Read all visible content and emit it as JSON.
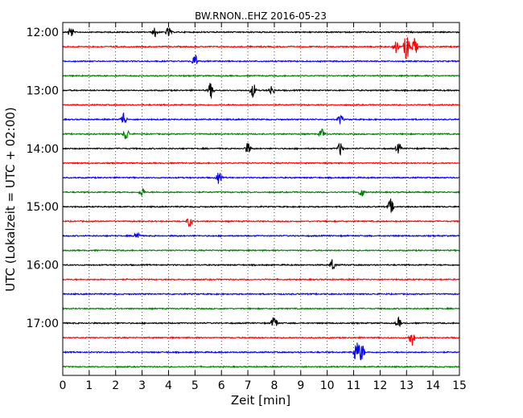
{
  "chart_data": {
    "type": "line",
    "title": "BW.RNON..EHZ 2016-05-23",
    "xlabel": "Zeit  [min]",
    "ylabel": "UTC (Lokalzeit = UTC + 02:00)",
    "xlim": [
      0,
      15
    ],
    "x_ticks": [
      "0",
      "1",
      "2",
      "3",
      "4",
      "5",
      "6",
      "7",
      "8",
      "9",
      "10",
      "11",
      "12",
      "13",
      "14",
      "15"
    ],
    "y_tick_labels": [
      "12:00",
      "13:00",
      "14:00",
      "15:00",
      "16:00",
      "17:00"
    ],
    "grid": "vertical dotted",
    "trace_colors": [
      "#000000",
      "#ff0000",
      "#0000ff",
      "#008000"
    ],
    "traces": [
      {
        "start": "12:00",
        "color": "#000000",
        "events": [
          {
            "t": 0.3,
            "amp": 0.35
          },
          {
            "t": 3.5,
            "amp": 0.3
          },
          {
            "t": 4.0,
            "amp": 0.3
          }
        ]
      },
      {
        "start": "12:15",
        "color": "#ff0000",
        "events": [
          {
            "t": 12.6,
            "amp": 0.4
          },
          {
            "t": 13.0,
            "amp": 0.9
          },
          {
            "t": 13.3,
            "amp": 0.6
          }
        ]
      },
      {
        "start": "12:30",
        "color": "#0000ff",
        "events": [
          {
            "t": 5.0,
            "amp": 0.4
          }
        ]
      },
      {
        "start": "12:45",
        "color": "#008000",
        "events": []
      },
      {
        "start": "13:00",
        "color": "#000000",
        "events": [
          {
            "t": 5.6,
            "amp": 0.5
          },
          {
            "t": 7.2,
            "amp": 0.45
          },
          {
            "t": 7.9,
            "amp": 0.3
          }
        ]
      },
      {
        "start": "13:15",
        "color": "#ff0000",
        "events": []
      },
      {
        "start": "13:30",
        "color": "#0000ff",
        "events": [
          {
            "t": 2.3,
            "amp": 0.45
          },
          {
            "t": 10.5,
            "amp": 0.3
          }
        ]
      },
      {
        "start": "13:45",
        "color": "#008000",
        "events": [
          {
            "t": 2.4,
            "amp": 0.4
          },
          {
            "t": 9.8,
            "amp": 0.3
          }
        ]
      },
      {
        "start": "14:00",
        "color": "#000000",
        "events": [
          {
            "t": 7.0,
            "amp": 0.35
          },
          {
            "t": 10.5,
            "amp": 0.4
          },
          {
            "t": 12.7,
            "amp": 0.3
          }
        ]
      },
      {
        "start": "14:15",
        "color": "#ff0000",
        "events": []
      },
      {
        "start": "14:30",
        "color": "#0000ff",
        "events": [
          {
            "t": 5.9,
            "amp": 0.35
          }
        ]
      },
      {
        "start": "14:45",
        "color": "#008000",
        "events": [
          {
            "t": 3.0,
            "amp": 0.3
          },
          {
            "t": 11.3,
            "amp": 0.3
          }
        ]
      },
      {
        "start": "15:00",
        "color": "#000000",
        "events": [
          {
            "t": 12.4,
            "amp": 0.45
          }
        ]
      },
      {
        "start": "15:15",
        "color": "#ff0000",
        "events": [
          {
            "t": 4.8,
            "amp": 0.3
          }
        ]
      },
      {
        "start": "15:30",
        "color": "#0000ff",
        "events": [
          {
            "t": 2.8,
            "amp": 0.3
          }
        ]
      },
      {
        "start": "15:45",
        "color": "#008000",
        "events": []
      },
      {
        "start": "16:00",
        "color": "#000000",
        "events": [
          {
            "t": 10.2,
            "amp": 0.35
          }
        ]
      },
      {
        "start": "16:15",
        "color": "#ff0000",
        "events": []
      },
      {
        "start": "16:30",
        "color": "#0000ff",
        "events": []
      },
      {
        "start": "16:45",
        "color": "#008000",
        "events": []
      },
      {
        "start": "17:00",
        "color": "#000000",
        "events": [
          {
            "t": 8.0,
            "amp": 0.45
          },
          {
            "t": 12.7,
            "amp": 0.3
          }
        ]
      },
      {
        "start": "17:15",
        "color": "#ff0000",
        "events": [
          {
            "t": 13.2,
            "amp": 0.5
          }
        ]
      },
      {
        "start": "17:30",
        "color": "#0000ff",
        "events": [
          {
            "t": 11.1,
            "amp": 0.7
          },
          {
            "t": 11.3,
            "amp": 0.6
          }
        ]
      },
      {
        "start": "17:45",
        "color": "#008000",
        "events": []
      }
    ]
  }
}
